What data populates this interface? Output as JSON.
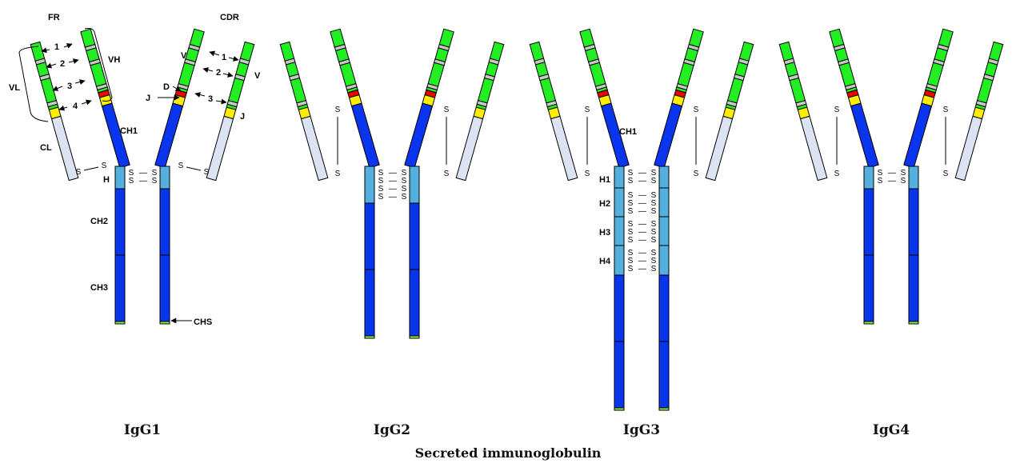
{
  "caption": "Secreted immunoglobulin",
  "colors": {
    "framework": "#22ee22",
    "cdr": "#c8c8c8",
    "d_segment": "#ee0000",
    "j_segment": "#ffee00",
    "constant_heavy": "#0a35ee",
    "hinge": "#55b0dd",
    "light_constant": "#dce4f4",
    "secretory_tail": "#88ee44"
  },
  "labels": {
    "fr": "FR",
    "cdr": "CDR",
    "vh": "VH",
    "vl": "VL",
    "cl": "CL",
    "ch1": "CH1",
    "ch2": "CH2",
    "ch3": "CH3",
    "chs": "CHS",
    "h": "H",
    "v_heavy": "V",
    "v_light": "V",
    "d": "D",
    "j_heavy": "J",
    "j_light": "J",
    "num1": "1",
    "num2": "2",
    "num3": "3",
    "num4": "4",
    "cdr1": "1",
    "cdr2": "2",
    "cdr3": "3"
  },
  "sulfur": "S",
  "bond_dash": "—",
  "subclasses": [
    {
      "name": "IgG1",
      "hinges": [],
      "interchain_bonds": 2
    },
    {
      "name": "IgG2",
      "hinges": [],
      "interchain_bonds": 4
    },
    {
      "name": "IgG3",
      "hinges": [
        "H1",
        "H2",
        "H3",
        "H4"
      ],
      "interchain_bonds": 11
    },
    {
      "name": "IgG4",
      "hinges": [],
      "interchain_bonds": 2
    }
  ]
}
